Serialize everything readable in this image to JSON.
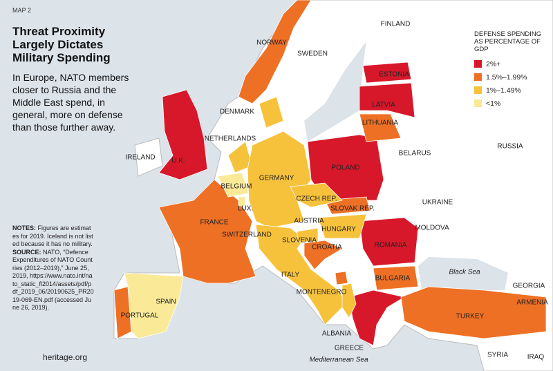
{
  "header": {
    "kicker": "MAP 2",
    "title": "Threat Proximity Largely Dictates Military Spending",
    "subtitle": "In Europe, NATO members closer to Russia and the Middle East spend, in general, more on defense than those further away."
  },
  "notes": {
    "label": "NOTES:",
    "text": "Figures are estimates for 2019. Iceland is not listed because it has no military.",
    "source_label": "SOURCE:",
    "source_text": "NATO, “Defence Expenditures of NATO Countries (2012–2019),” June 25, 2019, https://www.nato.int/nato_static_fl2014/assets/pdf/pdf_2019_06/20190625_PR2019-069-EN.pdf (accessed June 26, 2019)."
  },
  "logo": "heritage.org",
  "legend": {
    "title": "DEFENSE SPENDING AS PERCENTAGE OF GDP",
    "items": [
      {
        "label": "2%+",
        "color": "#d7182a"
      },
      {
        "label": "1.5%–1.99%",
        "color": "#ee7024"
      },
      {
        "label": "1%–1.49%",
        "color": "#f7c23b"
      },
      {
        "label": "<1%",
        "color": "#faea97"
      }
    ]
  },
  "countries": [
    {
      "name": "U.K.",
      "color": "#d7182a"
    },
    {
      "name": "ESTONIA",
      "color": "#d7182a"
    },
    {
      "name": "LATVIA",
      "color": "#d7182a"
    },
    {
      "name": "POLAND",
      "color": "#d7182a"
    },
    {
      "name": "ROMANIA",
      "color": "#d7182a"
    },
    {
      "name": "GREECE",
      "color": "#d7182a"
    },
    {
      "name": "NORWAY",
      "color": "#ee7024"
    },
    {
      "name": "LITHUANIA",
      "color": "#ee7024"
    },
    {
      "name": "FRANCE",
      "color": "#ee7024"
    },
    {
      "name": "BULGARIA",
      "color": "#ee7024"
    },
    {
      "name": "TURKEY",
      "color": "#ee7024"
    },
    {
      "name": "SLOVAK REP.",
      "color": "#ee7024"
    },
    {
      "name": "CROATIA",
      "color": "#ee7024"
    },
    {
      "name": "PORTUGAL",
      "color": "#ee7024"
    },
    {
      "name": "MONTENEGRO",
      "color": "#ee7024"
    },
    {
      "name": "DENMARK",
      "color": "#f7c23b"
    },
    {
      "name": "NETHERLANDS",
      "color": "#f7c23b"
    },
    {
      "name": "GERMANY",
      "color": "#f7c23b"
    },
    {
      "name": "CZECH REP.",
      "color": "#f7c23b"
    },
    {
      "name": "HUNGARY",
      "color": "#f7c23b"
    },
    {
      "name": "ITALY",
      "color": "#f7c23b"
    },
    {
      "name": "SLOVENIA",
      "color": "#f7c23b"
    },
    {
      "name": "ALBANIA",
      "color": "#f7c23b"
    },
    {
      "name": "BELGIUM",
      "color": "#faea97"
    },
    {
      "name": "SPAIN",
      "color": "#faea97"
    },
    {
      "name": "LUX.",
      "color": "#faea97"
    }
  ],
  "other_labels": [
    "IRELAND",
    "SWEDEN",
    "FINLAND",
    "BELARUS",
    "RUSSIA",
    "UKRAINE",
    "MOLDOVA",
    "AUSTRIA",
    "SWITZERLAND",
    "GEORGIA",
    "ARMENIA",
    "SYRIA",
    "IRAQ"
  ],
  "seas": [
    "Black Sea",
    "Mediterranean Sea"
  ]
}
